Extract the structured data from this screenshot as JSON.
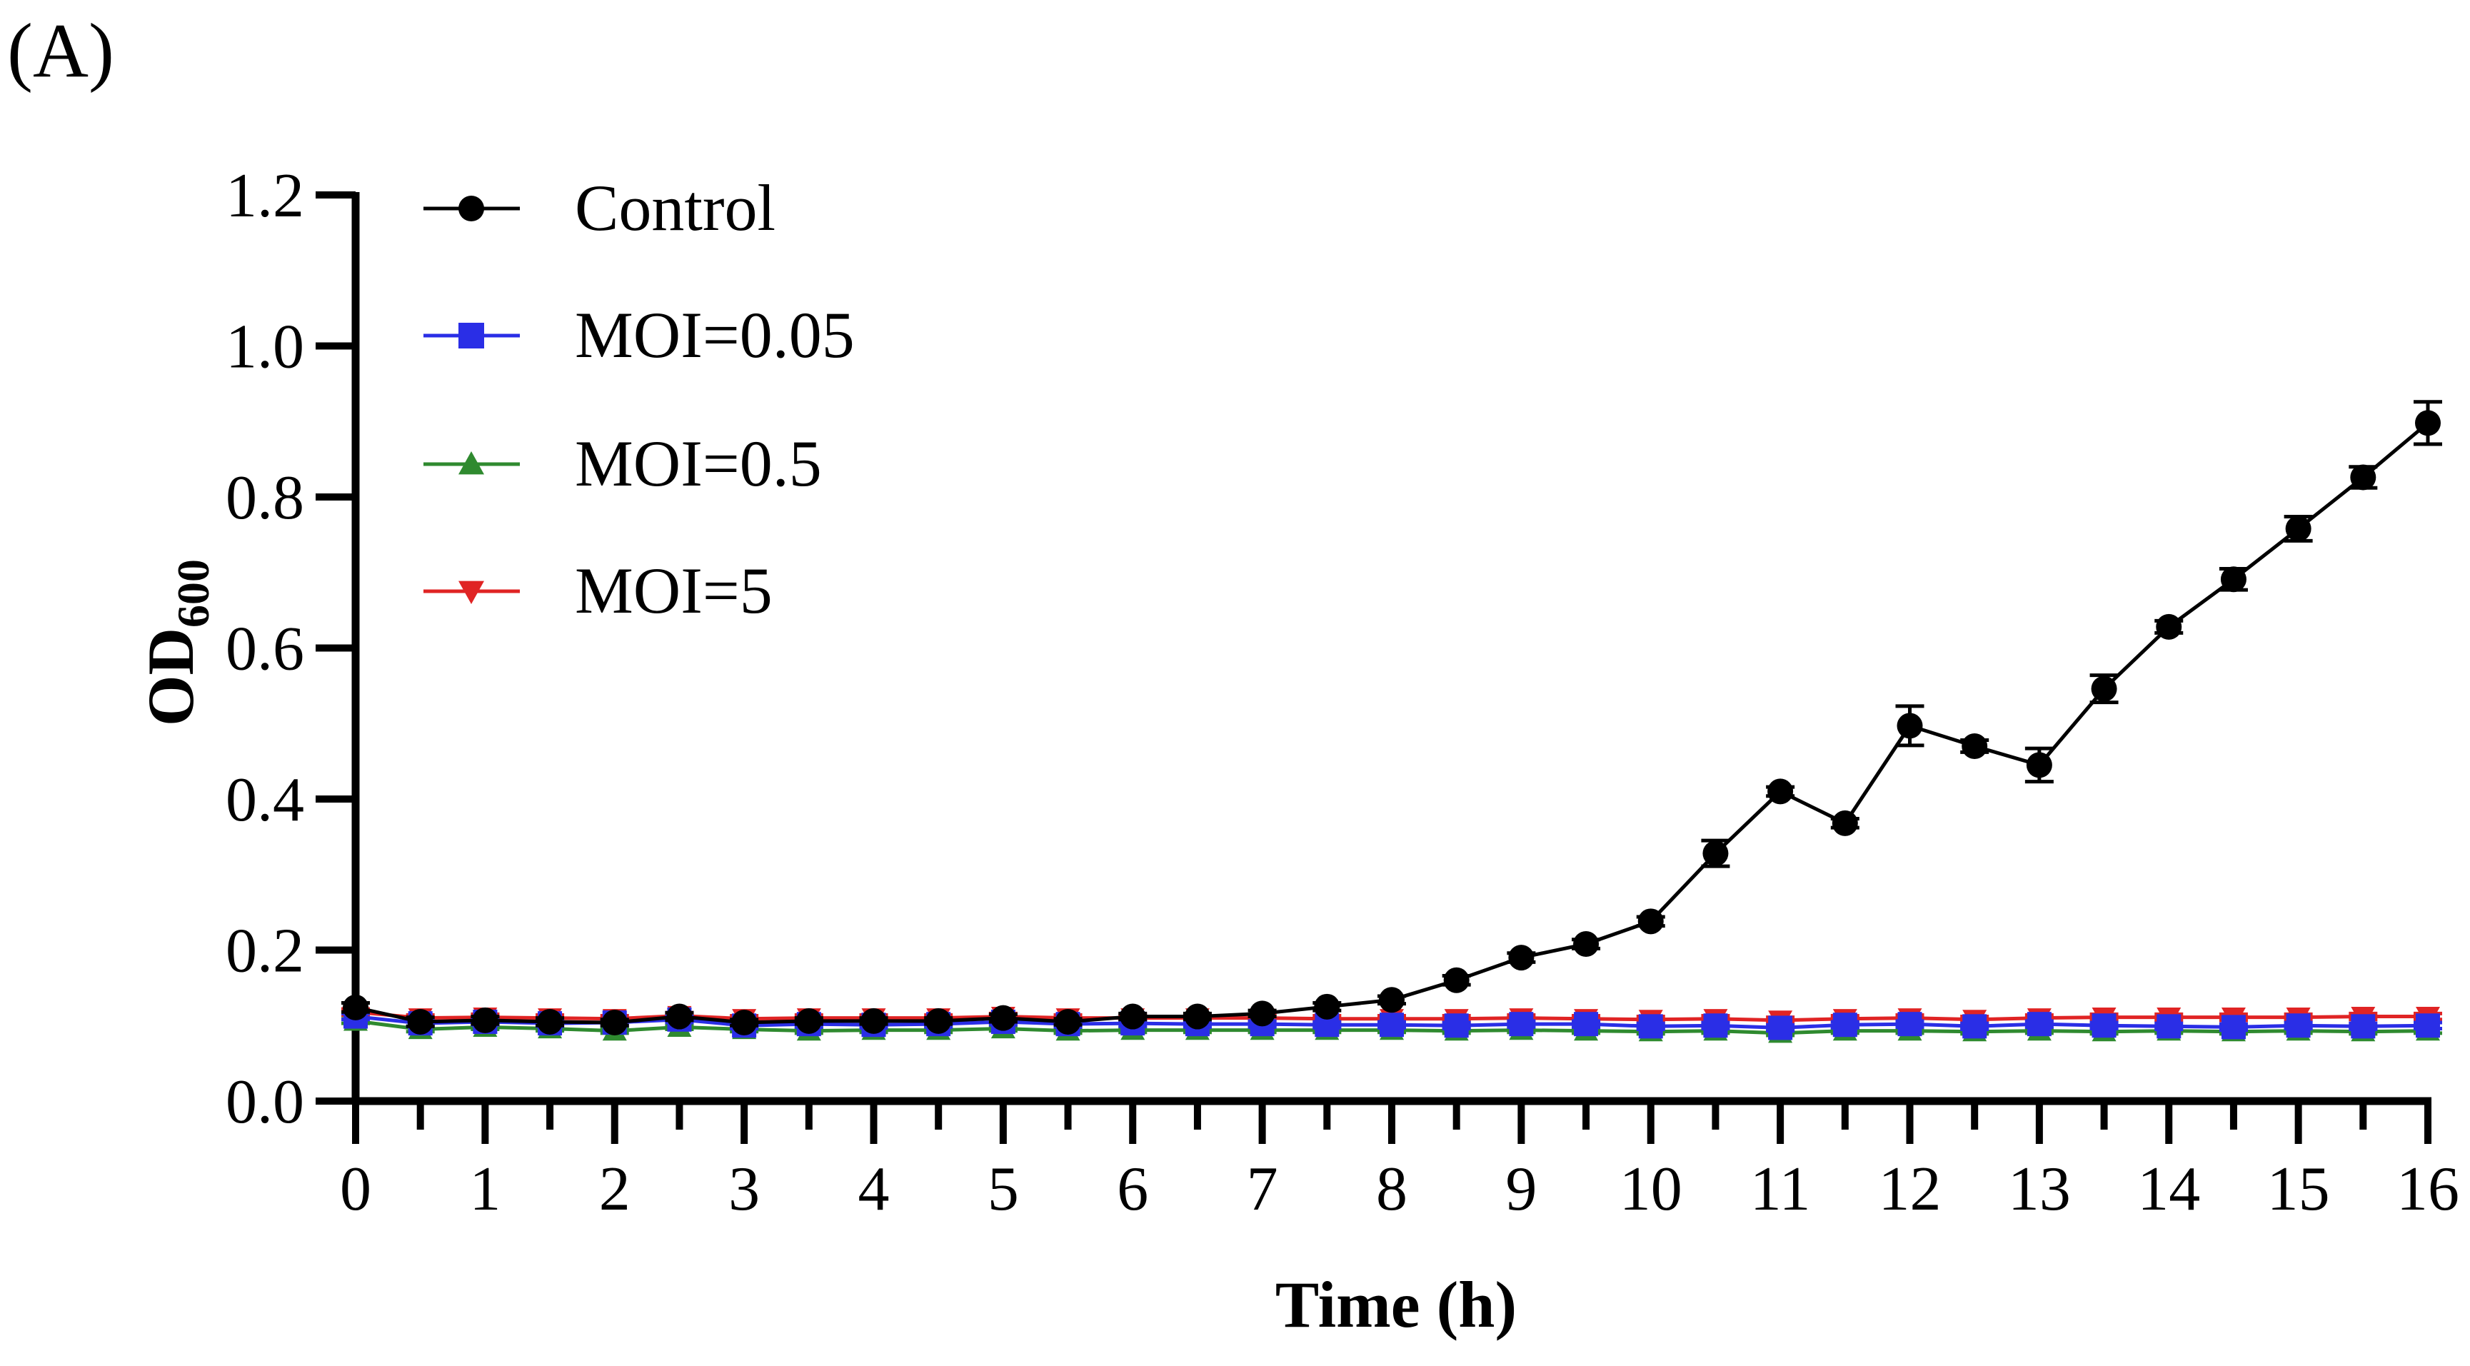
{
  "panel_label": "(A)",
  "chart_data": {
    "type": "line",
    "xlabel": "Time (h)",
    "ylabel_main": "OD",
    "ylabel_sub": "600",
    "xlim": [
      0,
      16
    ],
    "ylim": [
      0,
      1.2
    ],
    "xticks": [
      "0",
      "1",
      "2",
      "3",
      "4",
      "5",
      "6",
      "7",
      "8",
      "9",
      "10",
      "11",
      "12",
      "13",
      "14",
      "15",
      "16"
    ],
    "yticks": [
      "0.0",
      "0.2",
      "0.4",
      "0.6",
      "0.8",
      "1.0",
      "1.2"
    ],
    "legend_position": "top-left",
    "x": [
      0,
      0.5,
      1,
      1.5,
      2,
      2.5,
      3,
      3.5,
      4,
      4.5,
      5,
      5.5,
      6,
      6.5,
      7,
      7.5,
      8,
      8.5,
      9,
      9.5,
      10,
      10.5,
      11,
      11.5,
      12,
      12.5,
      13,
      13.5,
      14,
      14.5,
      15,
      15.5,
      16
    ],
    "series": [
      {
        "name": "Control",
        "color": "#000000",
        "marker": "circle",
        "values": [
          0.124,
          0.105,
          0.107,
          0.105,
          0.104,
          0.112,
          0.104,
          0.106,
          0.106,
          0.106,
          0.11,
          0.105,
          0.112,
          0.112,
          0.116,
          0.125,
          0.134,
          0.16,
          0.19,
          0.208,
          0.238,
          0.328,
          0.41,
          0.368,
          0.497,
          0.47,
          0.445,
          0.546,
          0.628,
          0.691,
          0.758,
          0.826,
          0.898
        ],
        "errors": [
          0.006,
          0.006,
          0.005,
          0.005,
          0.004,
          0.005,
          0.004,
          0.004,
          0.004,
          0.004,
          0.005,
          0.004,
          0.004,
          0.004,
          0.004,
          0.005,
          0.005,
          0.006,
          0.006,
          0.006,
          0.006,
          0.017,
          0.006,
          0.006,
          0.026,
          0.008,
          0.022,
          0.018,
          0.008,
          0.014,
          0.016,
          0.014,
          0.028
        ]
      },
      {
        "name": "MOI=0.05",
        "color": "#2a2ee6",
        "marker": "square",
        "values": [
          0.112,
          0.103,
          0.105,
          0.103,
          0.104,
          0.108,
          0.1,
          0.102,
          0.101,
          0.102,
          0.105,
          0.102,
          0.103,
          0.102,
          0.102,
          0.101,
          0.101,
          0.1,
          0.102,
          0.102,
          0.099,
          0.1,
          0.097,
          0.101,
          0.102,
          0.099,
          0.102,
          0.1,
          0.099,
          0.098,
          0.1,
          0.099,
          0.1
        ],
        "errors": [
          0.004,
          0.004,
          0.004,
          0.004,
          0.004,
          0.004,
          0.004,
          0.004,
          0.004,
          0.004,
          0.004,
          0.004,
          0.004,
          0.004,
          0.004,
          0.004,
          0.004,
          0.004,
          0.004,
          0.004,
          0.004,
          0.004,
          0.004,
          0.004,
          0.004,
          0.004,
          0.004,
          0.004,
          0.004,
          0.004,
          0.004,
          0.004,
          0.004
        ]
      },
      {
        "name": "MOI=0.5",
        "color": "#2f8a2f",
        "marker": "triangle-up",
        "values": [
          0.106,
          0.095,
          0.098,
          0.096,
          0.093,
          0.098,
          0.095,
          0.093,
          0.094,
          0.094,
          0.096,
          0.093,
          0.094,
          0.094,
          0.094,
          0.094,
          0.094,
          0.093,
          0.094,
          0.093,
          0.092,
          0.093,
          0.09,
          0.093,
          0.093,
          0.092,
          0.093,
          0.092,
          0.093,
          0.092,
          0.093,
          0.092,
          0.093
        ],
        "errors": [
          0.003,
          0.003,
          0.003,
          0.003,
          0.003,
          0.003,
          0.003,
          0.003,
          0.003,
          0.003,
          0.003,
          0.003,
          0.003,
          0.003,
          0.003,
          0.003,
          0.003,
          0.003,
          0.003,
          0.003,
          0.003,
          0.003,
          0.003,
          0.003,
          0.003,
          0.003,
          0.003,
          0.003,
          0.003,
          0.003,
          0.003,
          0.003,
          0.003
        ]
      },
      {
        "name": "MOI=5",
        "color": "#e02424",
        "marker": "triangle-down",
        "values": [
          0.118,
          0.11,
          0.111,
          0.11,
          0.109,
          0.113,
          0.109,
          0.11,
          0.11,
          0.11,
          0.112,
          0.11,
          0.11,
          0.11,
          0.11,
          0.109,
          0.109,
          0.109,
          0.11,
          0.109,
          0.108,
          0.109,
          0.107,
          0.109,
          0.11,
          0.108,
          0.11,
          0.111,
          0.111,
          0.111,
          0.111,
          0.112,
          0.112
        ],
        "errors": [
          0.004,
          0.004,
          0.004,
          0.004,
          0.004,
          0.004,
          0.004,
          0.004,
          0.004,
          0.004,
          0.004,
          0.004,
          0.004,
          0.004,
          0.004,
          0.004,
          0.004,
          0.004,
          0.004,
          0.004,
          0.004,
          0.004,
          0.004,
          0.004,
          0.004,
          0.004,
          0.004,
          0.004,
          0.004,
          0.004,
          0.004,
          0.004,
          0.004
        ]
      }
    ]
  }
}
